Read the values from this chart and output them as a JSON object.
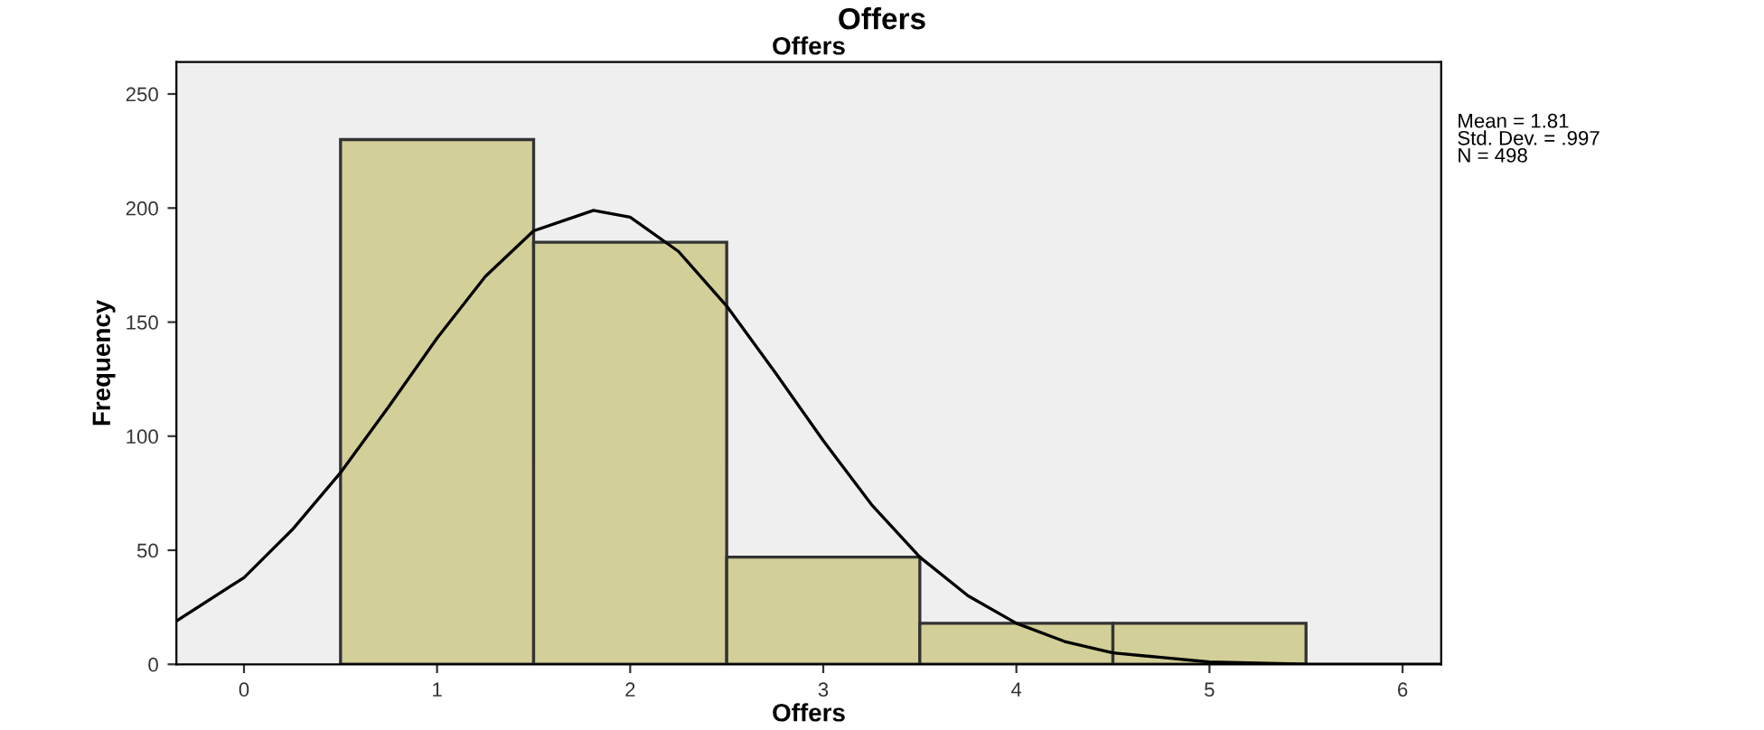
{
  "chart_data": {
    "type": "histogram",
    "title": "Offers",
    "subtitle": "Offers",
    "xlabel": "Offers",
    "ylabel": "Frequency",
    "series": [
      {
        "bins": [
          0.5,
          1.5,
          2.5,
          3.5,
          4.5,
          5.5
        ],
        "values": [
          230,
          185,
          47,
          18,
          18
        ],
        "color": "#d3cf98"
      },
      {
        "type": "line",
        "color": "#000000",
        "x": [
          -0.35,
          0,
          0.25,
          0.5,
          0.75,
          1,
          1.25,
          1.5,
          1.81,
          2,
          2.25,
          2.5,
          2.75,
          3,
          3.25,
          3.5,
          3.75,
          4,
          4.25,
          4.5,
          4.75,
          5,
          5.5,
          6.2
        ],
        "values": [
          19,
          38,
          59,
          84,
          113,
          143,
          170,
          190,
          199,
          196,
          181,
          157,
          128,
          98,
          70,
          47,
          30,
          18,
          10,
          5,
          3,
          1,
          0,
          0
        ]
      }
    ],
    "xlim": [
      -0.35,
      6.2
    ],
    "xticks": [
      0,
      1,
      2,
      3,
      4,
      5,
      6
    ],
    "ylim": [
      0,
      264
    ],
    "yticks": [
      0,
      50,
      100,
      150,
      200,
      250
    ],
    "grid": false,
    "legend": false,
    "annotations": [
      "Mean = 1.81\nStd. Dev. = .997\nN = 498"
    ]
  }
}
